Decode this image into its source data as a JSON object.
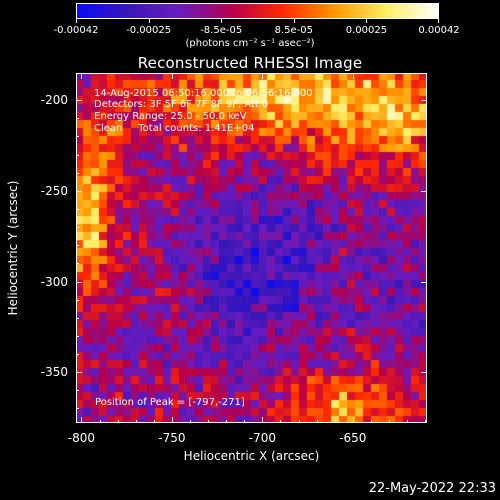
{
  "colorbar": {
    "ticks": [
      "-0.00042",
      "-0.00025",
      "-8.5e-05",
      "8.5e-05",
      "0.00025",
      "0.00042"
    ],
    "unit": "(photons cm⁻² s⁻¹ asec⁻²)",
    "colors": [
      "#0a0af5",
      "#3a18b8",
      "#6a1cc0",
      "#b6004c",
      "#ff2a00",
      "#ff9900",
      "#ffee66",
      "#ffffff"
    ]
  },
  "title": "Reconstructed RHESSI Image",
  "info": {
    "time": "14-Aug-2015 06:50:16.000 to 06:56:16.000",
    "detectors": "Detectors: 3F 5F 6F 7F 8F 9F, Att 0",
    "energy": "Energy Range: 25.0 - 50.0 keV",
    "method": "Clean     Total counts: 1.41E+04"
  },
  "peak_label": "Position of Peak = [-797,-271]",
  "axes": {
    "xlabel": "Heliocentric X (arcsec)",
    "ylabel": "Heliocentric Y (arcsec)",
    "xticks": [
      "-800",
      "-750",
      "-700",
      "-650"
    ],
    "yticks": [
      "-200",
      "-250",
      "-300",
      "-350"
    ],
    "xrange": [
      -803,
      -609
    ],
    "yrange": [
      -378,
      -185
    ]
  },
  "timestamp": "22-May-2022 22:33"
}
